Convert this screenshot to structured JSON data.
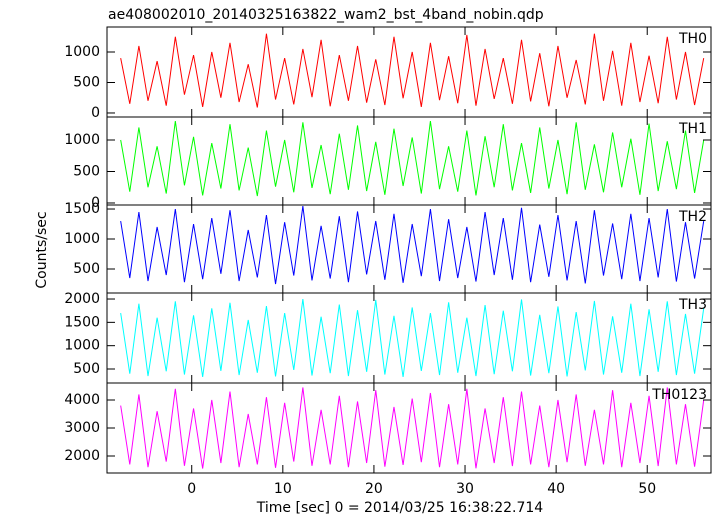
{
  "title": "ae408002010_20140325163822_wam2_bst_4band_nobin.qdp",
  "x_label": "Time [sec] 0 = 2014/03/25 16:38:22.714",
  "y_label": "Counts/sec",
  "chart_data": [
    {
      "type": "line",
      "xlim": [
        -9.3,
        57
      ],
      "xticks": [
        0,
        10,
        20,
        30,
        40,
        50
      ],
      "ylim": [
        -66,
        1410
      ],
      "yticks": [
        0,
        500,
        1000
      ],
      "x": [
        -7.8,
        -6.8,
        -5.8,
        -4.8,
        -3.8,
        -2.8,
        -1.8,
        -0.8,
        0.2,
        1.2,
        2.2,
        3.2,
        4.2,
        5.2,
        6.2,
        7.2,
        8.2,
        9.2,
        10.2,
        11.2,
        12.2,
        13.2,
        14.2,
        15.2,
        16.2,
        17.2,
        18.2,
        19.2,
        20.2,
        21.2,
        22.2,
        23.2,
        24.2,
        25.2,
        26.2,
        27.2,
        28.2,
        29.2,
        30.2,
        31.2,
        32.2,
        33.2,
        34.2,
        35.2,
        36.2,
        37.2,
        38.2,
        39.2,
        40.2,
        41.2,
        42.2,
        43.2,
        44.2,
        45.2,
        46.2,
        47.2,
        48.2,
        49.2,
        50.2,
        51.2,
        52.2,
        53.2,
        54.2,
        55.2,
        56.2
      ],
      "series": [
        {
          "name": "TH0",
          "color": "#ff0000",
          "values": [
            900,
            150,
            1100,
            200,
            850,
            120,
            1250,
            300,
            950,
            100,
            1000,
            250,
            1150,
            180,
            800,
            90,
            1300,
            220,
            900,
            140,
            1050,
            260,
            1200,
            110,
            950,
            200,
            1100,
            170,
            880,
            130,
            1250,
            240,
            1000,
            100,
            1150,
            210,
            930,
            160,
            1280,
            120,
            1050,
            230,
            900,
            150,
            1200,
            190,
            980,
            110,
            1100,
            250,
            870,
            140,
            1300,
            200,
            1020,
            120,
            1150,
            180,
            940,
            160,
            1250,
            220,
            1000,
            130,
            900
          ]
        }
      ]
    },
    {
      "type": "line",
      "xlim": [
        -9.3,
        57
      ],
      "xticks": [
        0,
        10,
        20,
        30,
        40,
        50
      ],
      "ylim": [
        -32,
        1365
      ],
      "yticks": [
        0,
        500,
        1000
      ],
      "x": [
        -7.8,
        -6.8,
        -5.8,
        -4.8,
        -3.8,
        -2.8,
        -1.8,
        -0.8,
        0.2,
        1.2,
        2.2,
        3.2,
        4.2,
        5.2,
        6.2,
        7.2,
        8.2,
        9.2,
        10.2,
        11.2,
        12.2,
        13.2,
        14.2,
        15.2,
        16.2,
        17.2,
        18.2,
        19.2,
        20.2,
        21.2,
        22.2,
        23.2,
        24.2,
        25.2,
        26.2,
        27.2,
        28.2,
        29.2,
        30.2,
        31.2,
        32.2,
        33.2,
        34.2,
        35.2,
        36.2,
        37.2,
        38.2,
        39.2,
        40.2,
        41.2,
        42.2,
        43.2,
        44.2,
        45.2,
        46.2,
        47.2,
        48.2,
        49.2,
        50.2,
        51.2,
        52.2,
        53.2,
        54.2,
        55.2,
        56.2
      ],
      "series": [
        {
          "name": "TH1",
          "color": "#00ff00",
          "values": [
            1000,
            180,
            1200,
            250,
            900,
            150,
            1300,
            280,
            1050,
            120,
            950,
            230,
            1250,
            200,
            880,
            110,
            1150,
            260,
            1000,
            170,
            1280,
            240,
            920,
            140,
            1100,
            210,
            1230,
            190,
            970,
            130,
            1180,
            270,
            1040,
            150,
            1300,
            220,
            900,
            180,
            1150,
            120,
            1060,
            250,
            1250,
            200,
            950,
            160,
            1200,
            230,
            1000,
            140,
            1280,
            210,
            930,
            170,
            1120,
            250,
            1020,
            130,
            1260,
            190,
            980,
            220,
            1150,
            160,
            1000
          ]
        }
      ]
    },
    {
      "type": "line",
      "xlim": [
        -9.3,
        57
      ],
      "xticks": [
        0,
        10,
        20,
        30,
        40,
        50
      ],
      "ylim": [
        100,
        1567
      ],
      "yticks": [
        500,
        1000,
        1500
      ],
      "x": [
        -7.8,
        -6.8,
        -5.8,
        -4.8,
        -3.8,
        -2.8,
        -1.8,
        -0.8,
        0.2,
        1.2,
        2.2,
        3.2,
        4.2,
        5.2,
        6.2,
        7.2,
        8.2,
        9.2,
        10.2,
        11.2,
        12.2,
        13.2,
        14.2,
        15.2,
        16.2,
        17.2,
        18.2,
        19.2,
        20.2,
        21.2,
        22.2,
        23.2,
        24.2,
        25.2,
        26.2,
        27.2,
        28.2,
        29.2,
        30.2,
        31.2,
        32.2,
        33.2,
        34.2,
        35.2,
        36.2,
        37.2,
        38.2,
        39.2,
        40.2,
        41.2,
        42.2,
        43.2,
        44.2,
        45.2,
        46.2,
        47.2,
        48.2,
        49.2,
        50.2,
        51.2,
        52.2,
        53.2,
        54.2,
        55.2,
        56.2
      ],
      "series": [
        {
          "name": "TH2",
          "color": "#0000ff",
          "values": [
            1300,
            350,
            1450,
            300,
            1200,
            400,
            1500,
            280,
            1250,
            330,
            1350,
            420,
            1480,
            300,
            1150,
            360,
            1400,
            250,
            1280,
            390,
            1550,
            310,
            1220,
            340,
            1380,
            280,
            1460,
            410,
            1300,
            320,
            1420,
            270,
            1250,
            380,
            1500,
            300,
            1330,
            350,
            1200,
            290,
            1450,
            400,
            1350,
            320,
            1520,
            280,
            1240,
            370,
            1400,
            310,
            1300,
            260,
            1480,
            390,
            1260,
            330,
            1420,
            300,
            1350,
            360,
            1500,
            290,
            1280,
            340,
            1300
          ]
        }
      ]
    },
    {
      "type": "line",
      "xlim": [
        -9.3,
        57
      ],
      "xticks": [
        0,
        10,
        20,
        30,
        40,
        50
      ],
      "ylim": [
        200,
        2129
      ],
      "yticks": [
        500,
        1000,
        1500,
        2000
      ],
      "x": [
        -7.8,
        -6.8,
        -5.8,
        -4.8,
        -3.8,
        -2.8,
        -1.8,
        -0.8,
        0.2,
        1.2,
        2.2,
        3.2,
        4.2,
        5.2,
        6.2,
        7.2,
        8.2,
        9.2,
        10.2,
        11.2,
        12.2,
        13.2,
        14.2,
        15.2,
        16.2,
        17.2,
        18.2,
        19.2,
        20.2,
        21.2,
        22.2,
        23.2,
        24.2,
        25.2,
        26.2,
        27.2,
        28.2,
        29.2,
        30.2,
        31.2,
        32.2,
        33.2,
        34.2,
        35.2,
        36.2,
        37.2,
        38.2,
        39.2,
        40.2,
        41.2,
        42.2,
        43.2,
        44.2,
        45.2,
        46.2,
        47.2,
        48.2,
        49.2,
        50.2,
        51.2,
        52.2,
        53.2,
        54.2,
        55.2,
        56.2
      ],
      "series": [
        {
          "name": "TH3",
          "color": "#00ffff",
          "values": [
            1700,
            400,
            1900,
            350,
            1600,
            450,
            1950,
            380,
            1650,
            330,
            1800,
            460,
            1920,
            370,
            1550,
            420,
            1850,
            340,
            1700,
            480,
            2000,
            360,
            1620,
            410,
            1880,
            350,
            1760,
            440,
            1980,
            380,
            1640,
            330,
            1820,
            460,
            1700,
            370,
            1930,
            420,
            1600,
            350,
            1870,
            390,
            1750,
            450,
            1990,
            360,
            1660,
            410,
            1840,
            340,
            1720,
            470,
            1960,
            380,
            1630,
            420,
            1900,
            350,
            1780,
            440,
            1950,
            370,
            1680,
            400,
            1800
          ]
        }
      ]
    },
    {
      "type": "line",
      "xlim": [
        -9.3,
        57
      ],
      "xticks": [
        0,
        10,
        20,
        30,
        40,
        50
      ],
      "ylim": [
        1393,
        4607
      ],
      "yticks": [
        2000,
        3000,
        4000
      ],
      "x": [
        -7.8,
        -6.8,
        -5.8,
        -4.8,
        -3.8,
        -2.8,
        -1.8,
        -0.8,
        0.2,
        1.2,
        2.2,
        3.2,
        4.2,
        5.2,
        6.2,
        7.2,
        8.2,
        9.2,
        10.2,
        11.2,
        12.2,
        13.2,
        14.2,
        15.2,
        16.2,
        17.2,
        18.2,
        19.2,
        20.2,
        21.2,
        22.2,
        23.2,
        24.2,
        25.2,
        26.2,
        27.2,
        28.2,
        29.2,
        30.2,
        31.2,
        32.2,
        33.2,
        34.2,
        35.2,
        36.2,
        37.2,
        38.2,
        39.2,
        40.2,
        41.2,
        42.2,
        43.2,
        44.2,
        45.2,
        46.2,
        47.2,
        48.2,
        49.2,
        50.2,
        51.2,
        52.2,
        53.2,
        54.2,
        55.2,
        56.2
      ],
      "series": [
        {
          "name": "TH0123",
          "color": "#ff00ff",
          "values": [
            3800,
            1700,
            4200,
            1600,
            3600,
            1800,
            4400,
            1650,
            3700,
            1550,
            4000,
            1750,
            4300,
            1600,
            3500,
            1700,
            4100,
            1580,
            3900,
            1800,
            4450,
            1650,
            3650,
            1700,
            4150,
            1600,
            3950,
            1750,
            4350,
            1620,
            3750,
            1680,
            4050,
            1780,
            4250,
            1600,
            3850,
            1700,
            4400,
            1560,
            3700,
            1750,
            4100,
            1640,
            4300,
            1700,
            3800,
            1600,
            4000,
            1780,
            4200,
            1650,
            3650,
            1700,
            4350,
            1600,
            3900,
            1750,
            4150,
            1640,
            4450,
            1700,
            3850,
            1620,
            4000
          ]
        }
      ]
    }
  ]
}
